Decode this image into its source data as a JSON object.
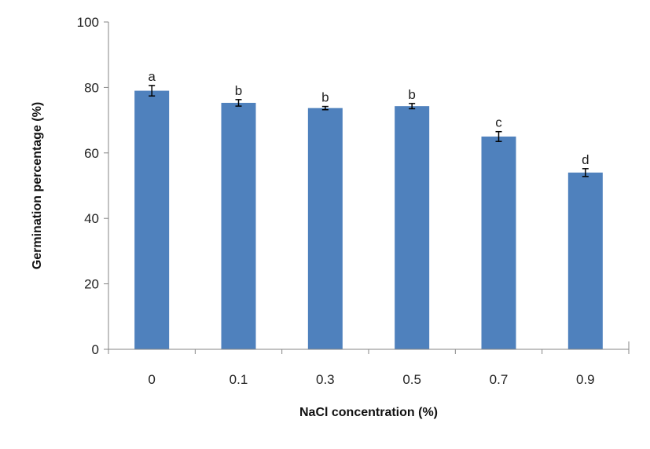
{
  "chart_data": {
    "type": "bar",
    "categories": [
      "0",
      "0.1",
      "0.3",
      "0.5",
      "0.7",
      "0.9"
    ],
    "values": [
      79,
      75.3,
      73.7,
      74.3,
      65,
      54
    ],
    "errors": [
      1.6,
      1.0,
      0.5,
      0.8,
      1.5,
      1.2
    ],
    "significance_letters": [
      "a",
      "b",
      "b",
      "b",
      "c",
      "d"
    ],
    "title": "",
    "xlabel": "NaCl concentration (%)",
    "ylabel": "Germination percentage (%)",
    "ylim": [
      0,
      100
    ],
    "yticks": [
      "0",
      "20",
      "40",
      "60",
      "80",
      "100"
    ],
    "ytick_values": [
      0,
      20,
      40,
      60,
      80,
      100
    ],
    "grid": false,
    "legend": "none",
    "colors": {
      "bar": "#4F81BD",
      "axis": "#868686",
      "error": "#000000"
    }
  }
}
